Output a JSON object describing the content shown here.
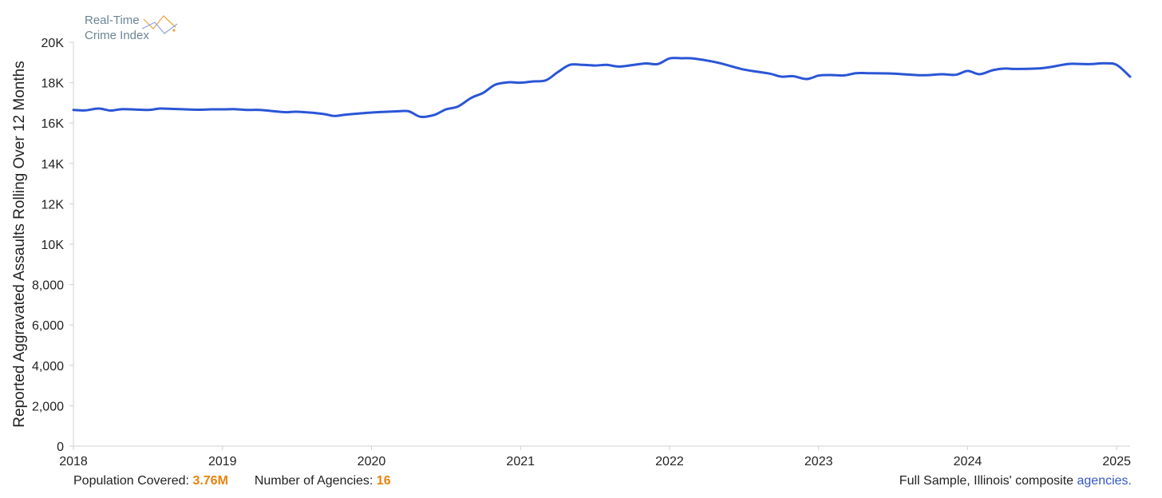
{
  "logo": {
    "line1": "Real-Time",
    "line2": "Crime Index"
  },
  "colors": {
    "line": "#2a55d6",
    "accent": "#e8820c",
    "link": "#3457c4",
    "axis": "#d0d0d0",
    "logo_text": "#6b8494"
  },
  "footer": {
    "population_label": "Population Covered:",
    "population_value": "3.76M",
    "agencies_label": "Number of Agencies:",
    "agencies_value": "16",
    "sample_text": "Full Sample, Illinois' composite",
    "agencies_link": "agencies."
  },
  "chart_data": {
    "type": "line",
    "title": "",
    "xlabel": "",
    "ylabel": "Reported Aggravated Assaults Rolling Over 12 Months",
    "xlim": [
      2018.0,
      2025.09
    ],
    "ylim": [
      0,
      20000
    ],
    "grid": false,
    "x_ticks": [
      {
        "value": 2018,
        "label": "2018"
      },
      {
        "value": 2019,
        "label": "2019"
      },
      {
        "value": 2020,
        "label": "2020"
      },
      {
        "value": 2021,
        "label": "2021"
      },
      {
        "value": 2022,
        "label": "2022"
      },
      {
        "value": 2023,
        "label": "2023"
      },
      {
        "value": 2024,
        "label": "2024"
      },
      {
        "value": 2025,
        "label": "2025"
      }
    ],
    "y_ticks": [
      {
        "value": 0,
        "label": "0"
      },
      {
        "value": 2000,
        "label": "2,000"
      },
      {
        "value": 4000,
        "label": "4,000"
      },
      {
        "value": 6000,
        "label": "6,000"
      },
      {
        "value": 8000,
        "label": "8,000"
      },
      {
        "value": 10000,
        "label": "10K"
      },
      {
        "value": 12000,
        "label": "12K"
      },
      {
        "value": 14000,
        "label": "14K"
      },
      {
        "value": 16000,
        "label": "16K"
      },
      {
        "value": 18000,
        "label": "18K"
      },
      {
        "value": 20000,
        "label": "20K"
      }
    ],
    "series": [
      {
        "x": [
          2018.0,
          2018.08,
          2018.17,
          2018.25,
          2018.33,
          2018.5,
          2018.58,
          2018.67,
          2018.83,
          2018.92,
          2019.0,
          2019.08,
          2019.17,
          2019.25,
          2019.42,
          2019.5,
          2019.67,
          2019.75,
          2019.83,
          2020.0,
          2020.17,
          2020.25,
          2020.33,
          2020.42,
          2020.5,
          2020.58,
          2020.67,
          2020.75,
          2020.83,
          2020.92,
          2021.0,
          2021.08,
          2021.17,
          2021.25,
          2021.33,
          2021.42,
          2021.5,
          2021.58,
          2021.67,
          2021.83,
          2021.92,
          2022.0,
          2022.08,
          2022.17,
          2022.33,
          2022.5,
          2022.67,
          2022.75,
          2022.83,
          2022.92,
          2023.0,
          2023.08,
          2023.17,
          2023.25,
          2023.33,
          2023.5,
          2023.67,
          2023.75,
          2023.83,
          2023.92,
          2024.0,
          2024.08,
          2024.17,
          2024.25,
          2024.33,
          2024.5,
          2024.67,
          2024.75,
          2024.83,
          2024.92,
          2025.0,
          2025.09
        ],
        "y": [
          16650,
          16630,
          16720,
          16620,
          16690,
          16650,
          16720,
          16700,
          16660,
          16680,
          16680,
          16690,
          16650,
          16650,
          16540,
          16560,
          16460,
          16350,
          16420,
          16520,
          16580,
          16580,
          16310,
          16400,
          16680,
          16820,
          17250,
          17500,
          17900,
          18020,
          18000,
          18060,
          18120,
          18520,
          18880,
          18880,
          18850,
          18880,
          18800,
          18950,
          18920,
          19200,
          19210,
          19190,
          18980,
          18650,
          18450,
          18300,
          18320,
          18180,
          18350,
          18380,
          18360,
          18470,
          18470,
          18450,
          18370,
          18380,
          18420,
          18390,
          18580,
          18420,
          18620,
          18700,
          18680,
          18720,
          18920,
          18930,
          18920,
          18960,
          18880,
          18300
        ]
      }
    ]
  }
}
